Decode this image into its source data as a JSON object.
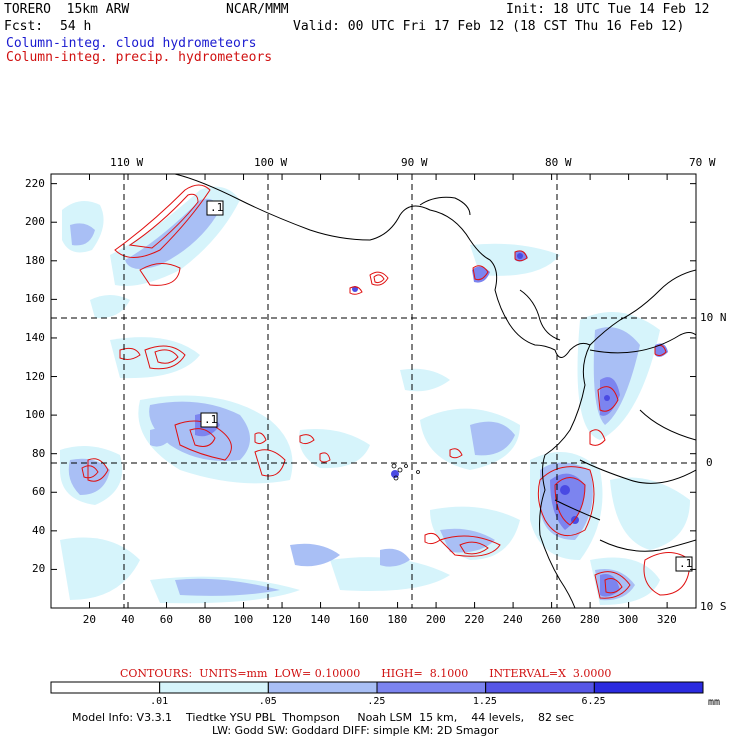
{
  "header": {
    "model": "TORERO  15km ARW",
    "center": "NCAR/MMM",
    "init": "Init: 18 UTC Tue 14 Feb 12",
    "fcst_label": "Fcst:",
    "fcst_value": "54 h",
    "valid": "Valid: 00 UTC Fri 17 Feb 12 (18 CST Thu 16 Feb 12)",
    "field1": "Column-integ. cloud hydrometeors",
    "field2": "Column-integ. precip. hydrometeors"
  },
  "lon_labels": [
    "110 W",
    "100 W",
    "90 W",
    "80 W",
    "70 W"
  ],
  "lat_labels": [
    "10 N",
    "0",
    "10 S"
  ],
  "x_ticks": [
    "20",
    "40",
    "60",
    "80",
    "100",
    "120",
    "140",
    "160",
    "180",
    "200",
    "220",
    "240",
    "260",
    "280",
    "300",
    "320"
  ],
  "y_ticks": [
    "20",
    "40",
    "60",
    "80",
    "100",
    "120",
    "140",
    "160",
    "180",
    "200",
    "220"
  ],
  "high_labels": [
    ".1",
    ".1",
    ".1"
  ],
  "colorbar": {
    "values": [
      ".01",
      ".05",
      ".25",
      "1.25",
      "6.25"
    ],
    "unit": "mm",
    "colors": [
      "#ffffff",
      "#d6f4fb",
      "#a9bff5",
      "#7c84ef",
      "#5656e6",
      "#2a2adf"
    ]
  },
  "contour_info": "CONTOURS:  UNITS=mm  LOW= 0.10000      HIGH=  8.1000      INTERVAL=X  3.0000",
  "model_info_1": "Model Info: V3.3.1    Tiedtke YSU PBL  Thompson     Noah LSM  15 km,    44 levels,    82 sec",
  "model_info_2": "LW: Godd SW: Goddard DIFF: simple KM: 2D Smagor"
}
